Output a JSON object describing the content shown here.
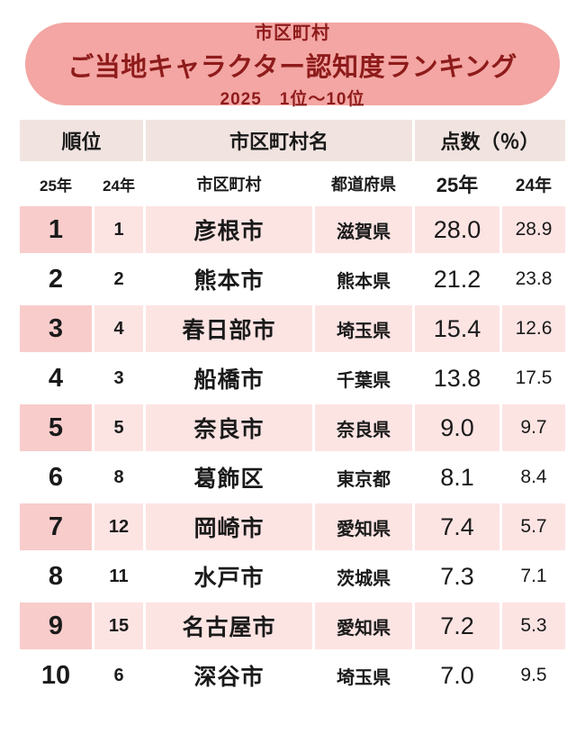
{
  "banner": {
    "line1": "市区町村",
    "line2": "ご当地キャラクター認知度ランキング",
    "line3": "2025　1位～10位"
  },
  "colors": {
    "banner_bg": "#f3a6a3",
    "banner_text": "#8e1b1b",
    "header_bg": "#f1e4e0",
    "row_pink": "#fce4e3",
    "rank_cell_pink": "#f8cccb"
  },
  "chart_data": {
    "type": "table",
    "title": "市区町村 ご当地キャラクター認知度ランキング 2025 1位～10位",
    "header_groups": [
      {
        "label": "順位",
        "span": 2
      },
      {
        "label": "市区町村名",
        "span": 2
      },
      {
        "label": "点数（％）",
        "span": 2
      }
    ],
    "columns": [
      "25年",
      "24年",
      "市区町村",
      "都道府県",
      "25年",
      "24年"
    ],
    "rows": [
      [
        "1",
        "1",
        "彦根市",
        "滋賀県",
        "28.0",
        "28.9"
      ],
      [
        "2",
        "2",
        "熊本市",
        "熊本県",
        "21.2",
        "23.8"
      ],
      [
        "3",
        "4",
        "春日部市",
        "埼玉県",
        "15.4",
        "12.6"
      ],
      [
        "4",
        "3",
        "船橋市",
        "千葉県",
        "13.8",
        "17.5"
      ],
      [
        "5",
        "5",
        "奈良市",
        "奈良県",
        "9.0",
        "9.7"
      ],
      [
        "6",
        "8",
        "葛飾区",
        "東京都",
        "8.1",
        "8.4"
      ],
      [
        "7",
        "12",
        "岡崎市",
        "愛知県",
        "7.4",
        "5.7"
      ],
      [
        "8",
        "11",
        "水戸市",
        "茨城県",
        "7.3",
        "7.1"
      ],
      [
        "9",
        "15",
        "名古屋市",
        "愛知県",
        "7.2",
        "5.3"
      ],
      [
        "10",
        "6",
        "深谷市",
        "埼玉県",
        "7.0",
        "9.5"
      ]
    ]
  }
}
